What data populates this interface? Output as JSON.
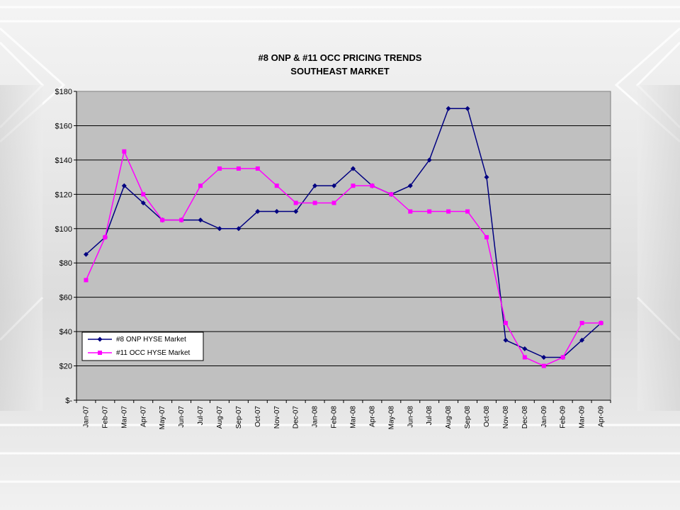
{
  "chart_data": {
    "type": "line",
    "title_line1": "#8 ONP & #11 OCC PRICING TRENDS",
    "title_line2": "SOUTHEAST MARKET",
    "categories": [
      "Jan-07",
      "Feb-07",
      "Mar-07",
      "Apr-07",
      "May-07",
      "Jun-07",
      "Jul-07",
      "Aug-07",
      "Sep-07",
      "Oct-07",
      "Nov-07",
      "Dec-07",
      "Jan-08",
      "Feb-08",
      "Mar-08",
      "Apr-08",
      "May-08",
      "Jun-08",
      "Jul-08",
      "Aug-08",
      "Sep-08",
      "Oct-08",
      "Nov-08",
      "Dec-08",
      "Jan-09",
      "Feb-09",
      "Mar-09",
      "Apr-09"
    ],
    "series": [
      {
        "name": "#8 ONP HYSE Market",
        "color": "#000080",
        "marker": "diamond",
        "values": [
          85,
          95,
          125,
          115,
          105,
          105,
          105,
          100,
          100,
          110,
          110,
          110,
          125,
          125,
          135,
          125,
          120,
          125,
          140,
          170,
          170,
          130,
          35,
          30,
          25,
          25,
          35,
          45
        ]
      },
      {
        "name": "#11 OCC HYSE Market",
        "color": "#ff00ff",
        "marker": "square",
        "values": [
          70,
          95,
          145,
          120,
          105,
          105,
          125,
          135,
          135,
          135,
          125,
          115,
          115,
          115,
          125,
          125,
          120,
          110,
          110,
          110,
          110,
          95,
          45,
          25,
          20,
          25,
          45,
          45
        ]
      }
    ],
    "ylim": [
      0,
      180
    ],
    "ytick_values": [
      0,
      20,
      40,
      60,
      80,
      100,
      120,
      140,
      160,
      180
    ],
    "ytick_labels": [
      "$-",
      "$20",
      "$40",
      "$60",
      "$80",
      "$100",
      "$120",
      "$140",
      "$160",
      "$180"
    ],
    "grid": true,
    "legend_position": "bottom-left",
    "plot_bg": "#c0c0c0"
  }
}
